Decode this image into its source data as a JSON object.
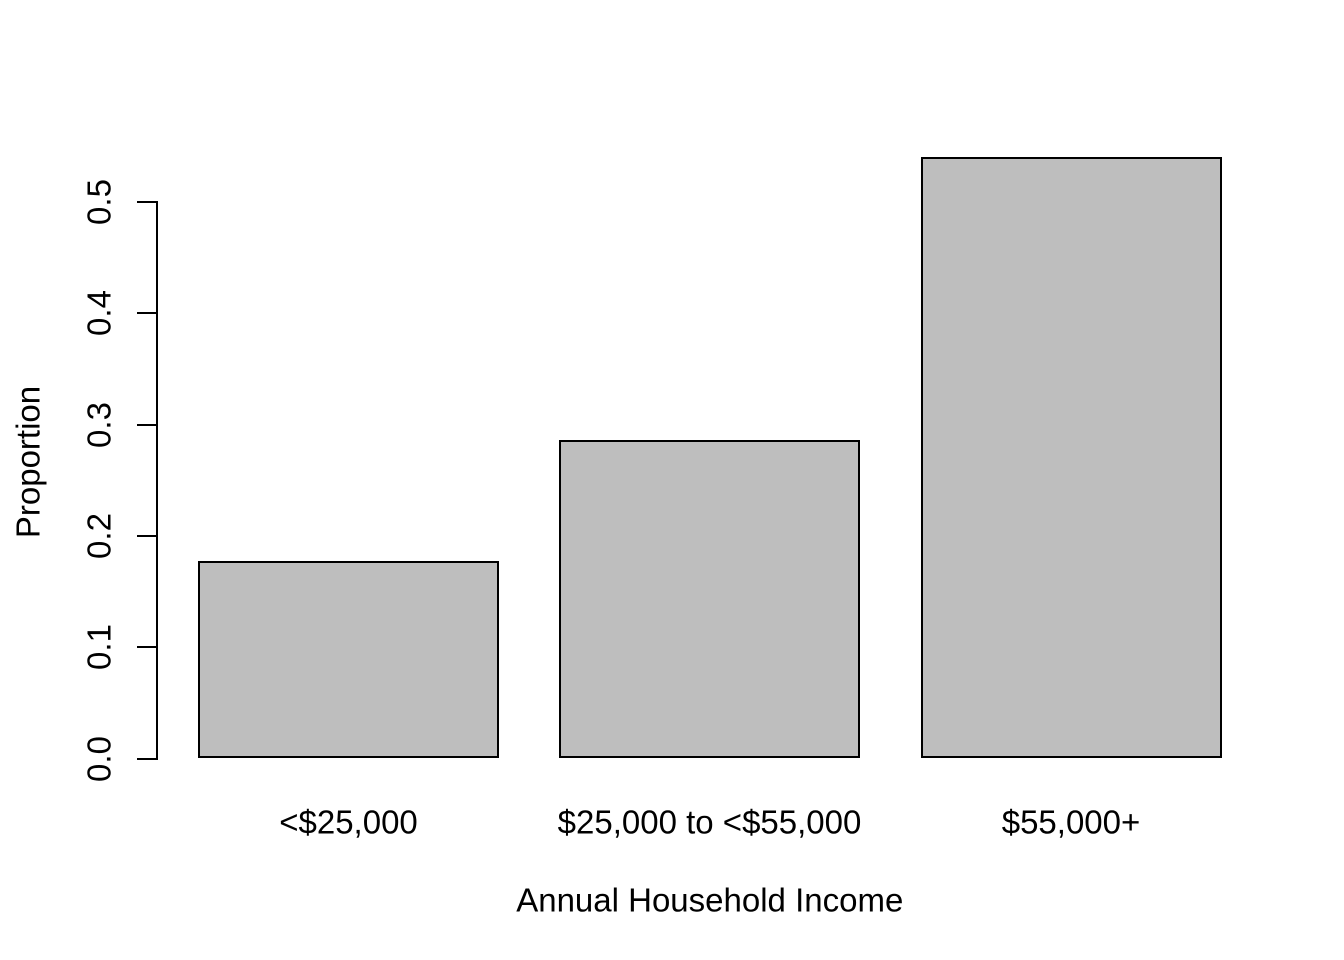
{
  "chart_data": {
    "type": "bar",
    "title": "",
    "categories": [
      "<$25,000",
      "$25,000 to <$55,000",
      "$55,000+"
    ],
    "values": [
      0.177,
      0.286,
      0.54
    ],
    "xlabel": "Annual Household Income",
    "ylabel": "Proportion",
    "ylim": [
      0,
      0.54
    ],
    "yticks": [
      0.0,
      0.1,
      0.2,
      0.3,
      0.4,
      0.5
    ],
    "ytick_labels": [
      "0.0",
      "0.1",
      "0.2",
      "0.3",
      "0.4",
      "0.5"
    ],
    "bar_fill_color": "#BEBEBE",
    "bar_border_color": "#000000",
    "axis_color": "#000000",
    "background_color": "#FFFFFF",
    "grid": false,
    "legend": false
  }
}
